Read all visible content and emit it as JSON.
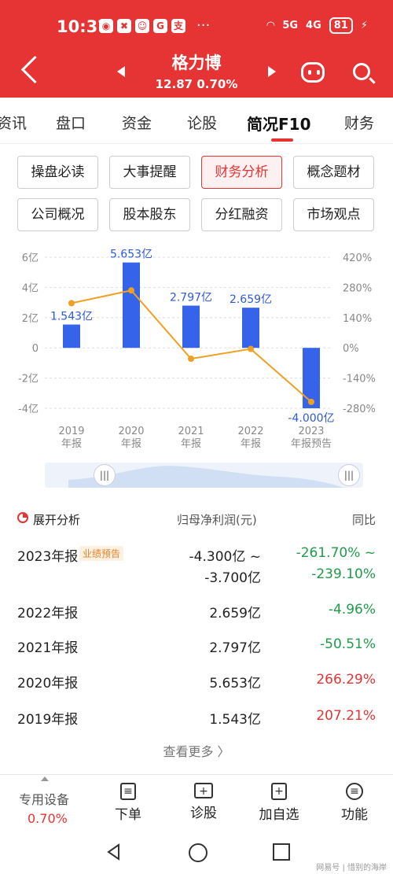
{
  "status": {
    "time": "10:37",
    "battery": "81",
    "signal1": "5G",
    "signal2": "4G"
  },
  "header": {
    "title": "格力博",
    "price": "12.87",
    "change": "0.70%"
  },
  "tabs": [
    {
      "label": "资讯"
    },
    {
      "label": "盘口"
    },
    {
      "label": "资金"
    },
    {
      "label": "论股"
    },
    {
      "label": "简况F10"
    },
    {
      "label": "财务"
    }
  ],
  "buttons": [
    {
      "label": "操盘必读"
    },
    {
      "label": "大事提醒"
    },
    {
      "label": "财务分析"
    },
    {
      "label": "概念题材"
    },
    {
      "label": "公司概况"
    },
    {
      "label": "股本股东"
    },
    {
      "label": "分红融资"
    },
    {
      "label": "市场观点"
    }
  ],
  "chart_data": {
    "type": "bar",
    "categories": [
      "2019\n年报",
      "2020\n年报",
      "2021\n年报",
      "2022\n年报",
      "2023\n年报预告"
    ],
    "values": [
      1.543,
      5.653,
      2.797,
      2.659,
      -4.0
    ],
    "value_labels": [
      "1.543亿",
      "5.653亿",
      "2.797亿",
      "2.659亿",
      "-4.000亿"
    ],
    "line_values": [
      207.21,
      266.29,
      -50.51,
      -4.96,
      -250.4
    ],
    "y_ticks": [
      "6亿",
      "4亿",
      "2亿",
      "0",
      "-2亿",
      "-4亿"
    ],
    "y_range": [
      -4,
      6
    ],
    "y2_ticks": [
      "420%",
      "280%",
      "140%",
      "0%",
      "-140%",
      "-280%"
    ],
    "y2_range": [
      -280,
      420
    ],
    "bar_color": "#3563e9",
    "line_color": "#f0a020",
    "grid": true
  },
  "table": {
    "section_title": "展开分析",
    "col_metric": "归母净利润(元)",
    "col_yoy": "同比",
    "rows": [
      {
        "period": "2023年报",
        "badge": "业绩预告",
        "value": "-4.300亿 ~",
        "value2": "-3.700亿",
        "yoy": "-261.70% ~",
        "yoy2": "-239.10%",
        "color": "green"
      },
      {
        "period": "2022年报",
        "value": "2.659亿",
        "yoy": "-4.96%",
        "color": "green"
      },
      {
        "period": "2021年报",
        "value": "2.797亿",
        "yoy": "-50.51%",
        "color": "green"
      },
      {
        "period": "2020年报",
        "value": "5.653亿",
        "yoy": "266.29%",
        "color": "red"
      },
      {
        "period": "2019年报",
        "value": "1.543亿",
        "yoy": "207.21%",
        "color": "red"
      }
    ],
    "more": "查看更多 〉"
  },
  "bottom_bar": {
    "device_label": "专用设备",
    "device_change": "0.70%",
    "items": [
      {
        "label": "下单"
      },
      {
        "label": "诊股"
      },
      {
        "label": "加自选"
      },
      {
        "label": "功能"
      }
    ]
  },
  "watermark": "网易号 | 惜别的海岸"
}
